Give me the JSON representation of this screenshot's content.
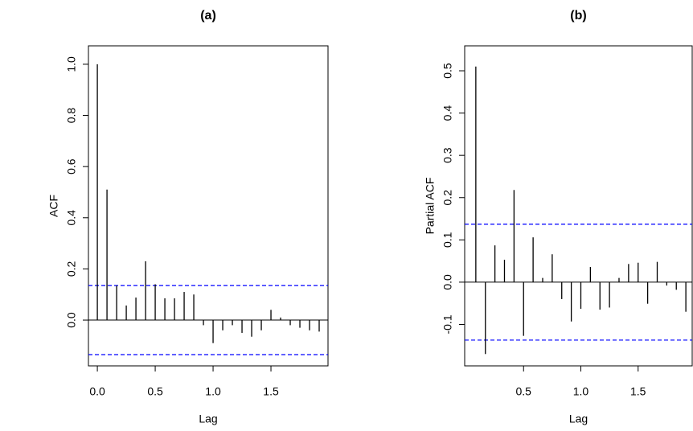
{
  "chart_data": [
    {
      "type": "stem",
      "title": "(a)",
      "xlabel": "Lag",
      "ylabel": "ACF",
      "x": [
        0,
        0.0833,
        0.1667,
        0.25,
        0.3333,
        0.4167,
        0.5,
        0.5833,
        0.6667,
        0.75,
        0.8333,
        0.9167,
        1.0,
        1.0833,
        1.1667,
        1.25,
        1.3333,
        1.4167,
        1.5,
        1.5833,
        1.6667,
        1.75,
        1.8333,
        1.9167
      ],
      "values": [
        1.0,
        0.51,
        0.135,
        0.057,
        0.088,
        0.23,
        0.14,
        0.085,
        0.085,
        0.11,
        0.1,
        -0.02,
        -0.09,
        -0.04,
        -0.02,
        -0.05,
        -0.065,
        -0.04,
        0.04,
        0.01,
        -0.02,
        -0.03,
        -0.04,
        -0.045
      ],
      "color": "#000000",
      "confidence_bounds": [
        0.135,
        -0.135
      ],
      "confidence_color": "#0000ff",
      "xlim": [
        -0.077,
        1.993
      ],
      "ylim": [
        -0.179,
        1.072
      ],
      "xticks": [
        {
          "value": 0,
          "label": "0.0"
        },
        0.5,
        {
          "value": 1,
          "label": "1.0"
        },
        1.5
      ],
      "yticks": [
        {
          "value": 0,
          "label": "0.0"
        },
        0.2,
        0.4,
        0.6,
        0.8,
        {
          "value": 1,
          "label": "1.0"
        }
      ]
    },
    {
      "type": "stem",
      "title": "(b)",
      "xlabel": "Lag",
      "ylabel": "Partial ACF",
      "x": [
        0.0833,
        0.1667,
        0.25,
        0.3333,
        0.4167,
        0.5,
        0.5833,
        0.6667,
        0.75,
        0.8333,
        0.9167,
        1.0,
        1.0833,
        1.1667,
        1.25,
        1.3333,
        1.4167,
        1.5,
        1.5833,
        1.6667,
        1.75,
        1.8333,
        1.9167
      ],
      "values": [
        0.51,
        -0.17,
        0.087,
        0.053,
        0.218,
        -0.127,
        0.106,
        0.01,
        0.066,
        -0.04,
        -0.093,
        -0.063,
        0.036,
        -0.065,
        -0.06,
        0.01,
        0.043,
        0.046,
        -0.051,
        0.048,
        -0.008,
        -0.018,
        -0.07
      ],
      "color": "#000000",
      "confidence_bounds": [
        0.137,
        -0.137
      ],
      "confidence_color": "#0000ff",
      "xlim": [
        -0.014,
        1.972
      ],
      "ylim": [
        -0.198,
        0.559
      ],
      "xticks": [
        0.5,
        {
          "value": 1,
          "label": "1.0"
        },
        1.5
      ],
      "yticks": [
        -0.1,
        {
          "value": 0,
          "label": "0.0"
        },
        0.1,
        0.2,
        0.3,
        0.4,
        0.5
      ]
    }
  ]
}
